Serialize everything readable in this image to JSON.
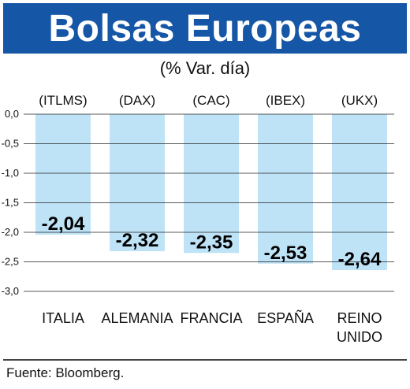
{
  "header": {
    "title": "Bolsas Europeas",
    "subtitle": "(% Var. día)"
  },
  "source": "Fuente: Bloomberg.",
  "colors": {
    "banner": "#1557a6",
    "bar": "#bfe3f6",
    "grid": "#222222"
  },
  "chart_data": {
    "type": "bar",
    "title": "Bolsas Europeas",
    "subtitle": "(% Var. día)",
    "categories": [
      "ITALIA",
      "ALEMANIA",
      "FRANCIA",
      "ESPAÑA",
      "REINO UNIDO"
    ],
    "category_lines": [
      [
        "ITALIA"
      ],
      [
        "ALEMANIA"
      ],
      [
        "FRANCIA"
      ],
      [
        "ESPAÑA"
      ],
      [
        "REINO",
        "UNIDO"
      ]
    ],
    "indices": [
      "(ITLMS)",
      "(DAX)",
      "(CAC)",
      "(IBEX)",
      "(UKX)"
    ],
    "values": [
      -2.04,
      -2.32,
      -2.35,
      -2.53,
      -2.64
    ],
    "value_labels": [
      "-2,04",
      "-2,32",
      "-2,35",
      "-2,53",
      "-2,64"
    ],
    "ylim": [
      -3.0,
      0.0
    ],
    "yticks": [
      0.0,
      -0.5,
      -1.0,
      -1.5,
      -2.0,
      -2.5,
      -3.0
    ],
    "ytick_labels": [
      "0,0",
      "-0,5",
      "-1,0",
      "-1,5",
      "-2,0",
      "-2,5",
      "-3,0"
    ],
    "grid": true,
    "xlabel": "",
    "ylabel": ""
  }
}
